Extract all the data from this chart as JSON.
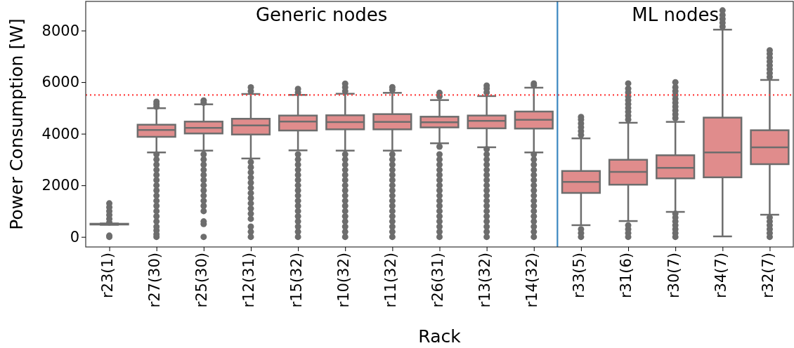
{
  "chart_data": {
    "type": "box",
    "xlabel": "Rack",
    "ylabel": "Power Consumption [W]",
    "categories": [
      "r23(1)",
      "r27(30)",
      "r25(30)",
      "r12(31)",
      "r15(32)",
      "r10(32)",
      "r11(32)",
      "r26(31)",
      "r13(32)",
      "r14(32)",
      "r33(5)",
      "r31(6)",
      "r30(7)",
      "r34(7)",
      "r32(7)"
    ],
    "color": "#e08c8c",
    "boxes": [
      {
        "low": 470,
        "q1": 480,
        "median": 500,
        "q3": 510,
        "high": 520,
        "outliers": [
          0,
          50,
          560,
          700,
          850,
          1000,
          1150,
          1300
        ]
      },
      {
        "low": 3275,
        "q1": 3880,
        "median": 4145,
        "q3": 4350,
        "high": 4990,
        "outliers": [
          0,
          100,
          250,
          400,
          600,
          800,
          1000,
          1200,
          1400,
          1600,
          1800,
          2000,
          2200,
          2400,
          2600,
          2800,
          3000,
          3200,
          5050,
          5150,
          5240
        ]
      },
      {
        "low": 3345,
        "q1": 4010,
        "median": 4230,
        "q3": 4470,
        "high": 5140,
        "outliers": [
          0,
          500,
          600,
          1000,
          1200,
          1400,
          1600,
          1800,
          2000,
          2200,
          2400,
          2600,
          2800,
          3000,
          3200,
          5200,
          5290
        ]
      },
      {
        "low": 3040,
        "q1": 3970,
        "median": 4320,
        "q3": 4580,
        "high": 5540,
        "outliers": [
          0,
          200,
          400,
          700,
          900,
          1100,
          1300,
          1500,
          1700,
          1900,
          2100,
          2300,
          2500,
          2700,
          2900,
          5650,
          5800
        ]
      },
      {
        "low": 3355,
        "q1": 4125,
        "median": 4470,
        "q3": 4705,
        "high": 5505,
        "outliers": [
          0,
          200,
          400,
          600,
          800,
          1000,
          1200,
          1400,
          1600,
          1800,
          2000,
          2200,
          2400,
          2600,
          2800,
          3000,
          3200,
          5600,
          5740
        ]
      },
      {
        "low": 3345,
        "q1": 4170,
        "median": 4450,
        "q3": 4715,
        "high": 5550,
        "outliers": [
          0,
          200,
          400,
          600,
          800,
          1000,
          1200,
          1400,
          1600,
          1800,
          2000,
          2200,
          2400,
          2600,
          2800,
          3000,
          3200,
          5650,
          5800,
          5940
        ]
      },
      {
        "low": 3345,
        "q1": 4170,
        "median": 4460,
        "q3": 4760,
        "high": 5585,
        "outliers": [
          0,
          200,
          400,
          600,
          800,
          1000,
          1200,
          1400,
          1600,
          1800,
          2000,
          2200,
          2400,
          2600,
          2800,
          3000,
          3200,
          5700,
          5805
        ]
      },
      {
        "low": 3630,
        "q1": 4245,
        "median": 4445,
        "q3": 4660,
        "high": 5305,
        "outliers": [
          0,
          200,
          400,
          600,
          800,
          1000,
          1200,
          1400,
          1600,
          1800,
          2000,
          2200,
          2400,
          2600,
          2800,
          3000,
          3200,
          3500,
          5450,
          5585
        ]
      },
      {
        "low": 3475,
        "q1": 4210,
        "median": 4500,
        "q3": 4705,
        "high": 5460,
        "outliers": [
          0,
          200,
          400,
          600,
          800,
          1000,
          1200,
          1400,
          1600,
          1800,
          2000,
          2200,
          2400,
          2600,
          2800,
          3000,
          3200,
          3400,
          5600,
          5750,
          5865
        ]
      },
      {
        "low": 3275,
        "q1": 4200,
        "median": 4540,
        "q3": 4860,
        "high": 5785,
        "outliers": [
          0,
          200,
          400,
          600,
          800,
          1000,
          1200,
          1400,
          1600,
          1800,
          2000,
          2200,
          2400,
          2600,
          2800,
          3000,
          3200,
          5880,
          5950
        ]
      },
      {
        "low": 455,
        "q1": 1705,
        "median": 2130,
        "q3": 2555,
        "high": 3820,
        "outliers": [
          0,
          150,
          300,
          3950,
          4100,
          4250,
          4400,
          4550,
          4650
        ]
      },
      {
        "low": 615,
        "q1": 2025,
        "median": 2520,
        "q3": 2990,
        "high": 4425,
        "outliers": [
          0,
          150,
          300,
          450,
          4550,
          4700,
          4850,
          5000,
          5150,
          5300,
          5450,
          5600,
          5750,
          5950
        ]
      },
      {
        "low": 970,
        "q1": 2270,
        "median": 2675,
        "q3": 3165,
        "high": 4460,
        "outliers": [
          0,
          150,
          300,
          450,
          600,
          750,
          900,
          4600,
          4750,
          4900,
          5050,
          5200,
          5350,
          5500,
          5650,
          5800,
          5995
        ]
      },
      {
        "low": 20,
        "q1": 2310,
        "median": 3275,
        "q3": 4625,
        "high": 8035,
        "outliers": [
          8150,
          8300,
          8450,
          8600,
          8780
        ]
      },
      {
        "low": 860,
        "q1": 2820,
        "median": 3475,
        "q3": 4135,
        "high": 6085,
        "outliers": [
          0,
          150,
          300,
          450,
          600,
          750,
          6200,
          6350,
          6500,
          6650,
          6800,
          6950,
          7100,
          7235
        ]
      }
    ],
    "ylim": [
      -390,
      9130
    ],
    "yticks": [
      0,
      2000,
      4000,
      6000,
      8000
    ],
    "ref_lines": [
      {
        "axis": "y",
        "value": 5500,
        "color": "#ff4040",
        "line_style": "dotted"
      },
      {
        "axis": "x",
        "value": "r33(5)",
        "color": "#3a87c0",
        "line_style": "solid"
      }
    ],
    "annotations": [
      "Generic nodes",
      "ML nodes"
    ]
  }
}
